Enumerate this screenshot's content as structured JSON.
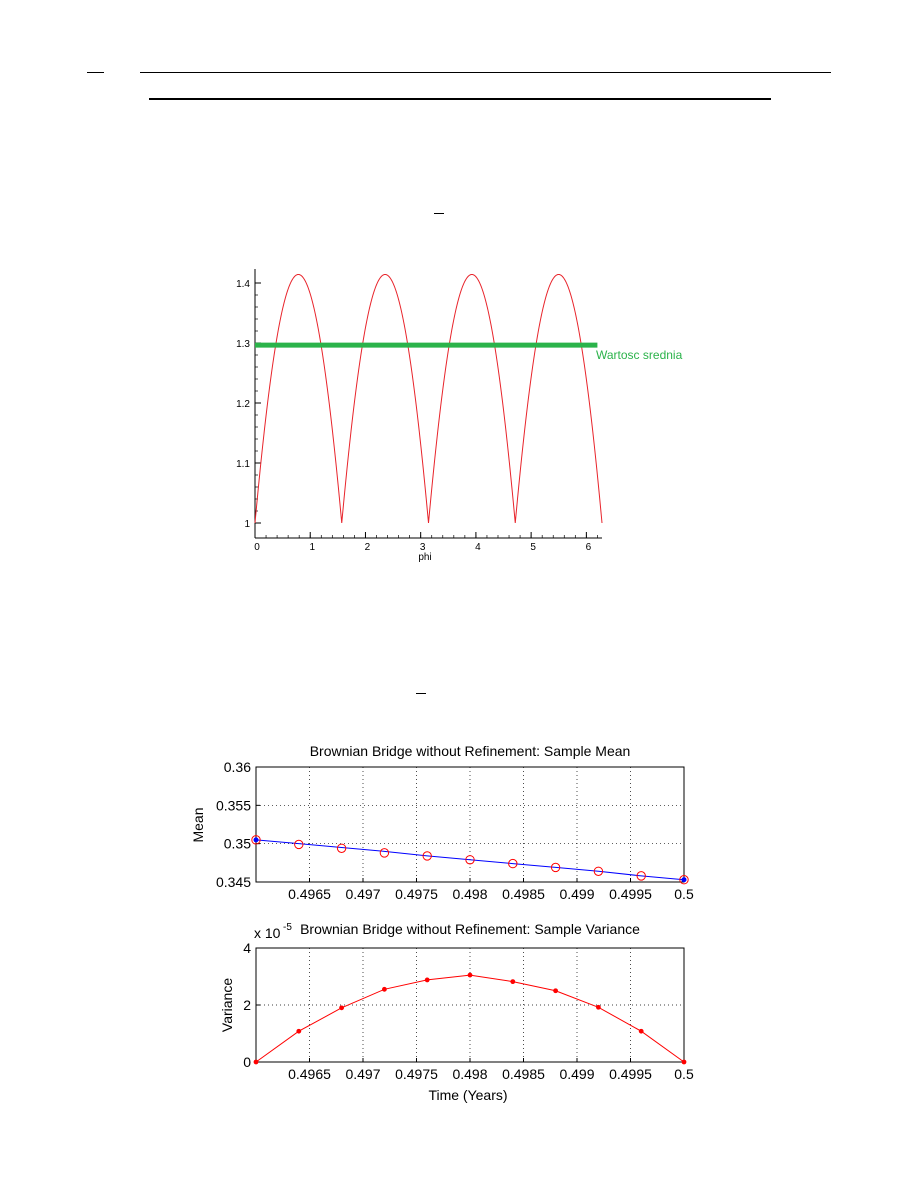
{
  "chart_data": [
    {
      "type": "line",
      "title": "",
      "xlabel": "phi",
      "ylabel": "",
      "xlim": [
        0,
        6.3
      ],
      "ylim": [
        1,
        1.42
      ],
      "xticks": [
        0,
        1,
        2,
        3,
        4,
        5,
        6
      ],
      "yticks": [
        1,
        1.1,
        1.2,
        1.3,
        1.4
      ],
      "xtick_labels": [
        "0",
        "1",
        "2",
        "3",
        "4",
        "5",
        "6"
      ],
      "ytick_labels": [
        "1",
        "1.1",
        "1.2",
        "1.3",
        "1.4"
      ],
      "series": [
        {
          "function": "|sin(phi)| + |cos(phi)|",
          "domain": [
            0,
            6.2832
          ],
          "color": "#e8242b"
        },
        {
          "name": "Wartosc srednia",
          "constant": 1.2965,
          "domain": [
            0,
            6.2
          ],
          "color": "#2bb34a"
        }
      ],
      "annotations": [
        "Wartosc srednia"
      ],
      "grid": false
    },
    {
      "type": "scatter",
      "title": "Brownian Bridge without Refinement: Sample Mean",
      "xlabel": "",
      "ylabel": "Mean",
      "xlim": [
        0.496,
        0.5
      ],
      "ylim": [
        0.345,
        0.36
      ],
      "xticks": [
        0.4965,
        0.497,
        0.4975,
        0.498,
        0.4985,
        0.499,
        0.4995,
        0.5
      ],
      "xtick_labels": [
        "0.4965",
        "0.497",
        "0.4975",
        "0.498",
        "0.4985",
        "0.499",
        "0.4995",
        "0.5"
      ],
      "yticks": [
        0.345,
        0.35,
        0.355,
        0.36
      ],
      "ytick_labels": [
        "0.345",
        "0.35",
        "0.355",
        "0.36"
      ],
      "x": [
        0.496,
        0.4964,
        0.4968,
        0.4972,
        0.4976,
        0.498,
        0.4984,
        0.4988,
        0.4992,
        0.4996,
        0.5
      ],
      "series": [
        {
          "kind": "markers",
          "marker": "circle",
          "color": "#ff0000",
          "values": [
            0.3505,
            0.3499,
            0.3494,
            0.3488,
            0.3484,
            0.3479,
            0.3474,
            0.3469,
            0.3464,
            0.3458,
            0.3453
          ]
        },
        {
          "kind": "line",
          "color": "#0000ff",
          "values": [
            0.3505,
            0.35,
            0.3495,
            0.349,
            0.3484,
            0.3479,
            0.3474,
            0.3469,
            0.3464,
            0.3458,
            0.3453
          ]
        }
      ],
      "grid": true
    },
    {
      "type": "line",
      "title": "Brownian Bridge without Refinement: Sample Variance",
      "xlabel": "Time (Years)",
      "ylabel": "Variance",
      "y_exponent_label": "x 10",
      "y_exponent": "-5",
      "xlim": [
        0.496,
        0.5
      ],
      "ylim": [
        0,
        4
      ],
      "xticks": [
        0.4965,
        0.497,
        0.4975,
        0.498,
        0.4985,
        0.499,
        0.4995,
        0.5
      ],
      "xtick_labels": [
        "0.4965",
        "0.497",
        "0.4975",
        "0.498",
        "0.4985",
        "0.499",
        "0.4995",
        "0.5"
      ],
      "yticks": [
        0,
        2,
        4
      ],
      "ytick_labels": [
        "0",
        "2",
        "4"
      ],
      "x": [
        0.496,
        0.4964,
        0.4968,
        0.4972,
        0.4976,
        0.498,
        0.4984,
        0.4988,
        0.4992,
        0.4996,
        0.5
      ],
      "series": [
        {
          "kind": "line+markers",
          "color": "#ff0000",
          "values": [
            0,
            1.08,
            1.9,
            2.55,
            2.88,
            3.05,
            2.82,
            2.5,
            1.92,
            1.08,
            0
          ]
        }
      ],
      "grid": true
    }
  ]
}
